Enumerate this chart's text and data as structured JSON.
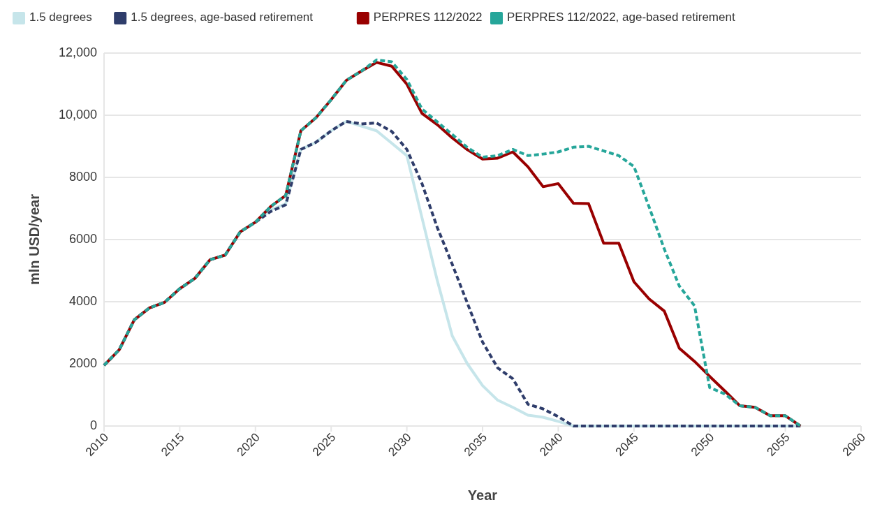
{
  "chart_data": {
    "type": "line",
    "xlabel": "Year",
    "ylabel": "mln USD/year",
    "x": [
      2010,
      2011,
      2012,
      2013,
      2014,
      2015,
      2016,
      2017,
      2018,
      2019,
      2020,
      2021,
      2022,
      2023,
      2024,
      2025,
      2026,
      2027,
      2028,
      2029,
      2030,
      2031,
      2032,
      2033,
      2034,
      2035,
      2036,
      2037,
      2038,
      2039,
      2040,
      2041,
      2042,
      2043,
      2044,
      2045,
      2046,
      2047,
      2048,
      2049,
      2050,
      2051,
      2052,
      2053,
      2054,
      2055,
      2056
    ],
    "series": [
      {
        "name": "1.5 degrees",
        "color": "#c6e5ea",
        "line_style": "solid",
        "values": [
          1950,
          2450,
          3420,
          3800,
          3980,
          4420,
          4750,
          5350,
          5500,
          6250,
          6560,
          6950,
          7150,
          8900,
          9130,
          9500,
          9800,
          9650,
          9500,
          9100,
          8700,
          6700,
          4700,
          2900,
          2000,
          1300,
          830,
          600,
          350,
          280,
          150,
          0,
          0,
          0,
          0,
          0,
          0,
          0,
          0,
          0,
          0,
          0,
          0,
          0,
          0,
          0,
          0
        ]
      },
      {
        "name": "1.5 degrees, age-based retirement",
        "color": "#2f3d6b",
        "line_style": "dashed",
        "values": [
          1950,
          2450,
          3420,
          3800,
          3980,
          4420,
          4750,
          5350,
          5500,
          6250,
          6560,
          6900,
          7120,
          8900,
          9130,
          9500,
          9800,
          9720,
          9750,
          9480,
          8900,
          7800,
          6400,
          5200,
          3950,
          2700,
          1870,
          1520,
          700,
          550,
          300,
          0,
          0,
          0,
          0,
          0,
          0,
          0,
          0,
          0,
          0,
          0,
          0,
          0,
          0,
          0,
          0
        ]
      },
      {
        "name": "PERPRES 112/2022",
        "color": "#990000",
        "line_style": "solid",
        "values": [
          1950,
          2450,
          3420,
          3800,
          3980,
          4420,
          4750,
          5350,
          5500,
          6250,
          6560,
          7060,
          7420,
          9500,
          9920,
          10500,
          11120,
          11420,
          11700,
          11580,
          11000,
          10060,
          9700,
          9270,
          8890,
          8590,
          8620,
          8820,
          8340,
          7700,
          7800,
          7170,
          7160,
          5880,
          5880,
          4640,
          4090,
          3700,
          2500,
          2080,
          1600,
          1130,
          650,
          600,
          330,
          330,
          0
        ]
      },
      {
        "name": "PERPRES 112/2022, age-based retirement",
        "color": "#26a69a",
        "line_style": "dashed",
        "values": [
          1950,
          2450,
          3420,
          3800,
          3980,
          4420,
          4750,
          5350,
          5500,
          6250,
          6560,
          7060,
          7420,
          9500,
          9920,
          10500,
          11120,
          11420,
          11780,
          11720,
          11150,
          10200,
          9790,
          9380,
          8960,
          8650,
          8700,
          8900,
          8700,
          8750,
          8820,
          8970,
          9000,
          8850,
          8700,
          8350,
          7050,
          5700,
          4500,
          3870,
          1240,
          1030,
          650,
          600,
          330,
          330,
          0
        ]
      }
    ],
    "xlim": [
      2010,
      2060
    ],
    "xticks": [
      2010,
      2015,
      2020,
      2025,
      2030,
      2035,
      2040,
      2045,
      2050,
      2055,
      2060
    ],
    "ylim": [
      0,
      12000
    ],
    "yticks": [
      0,
      2000,
      4000,
      6000,
      8000,
      {
        "value": 10000,
        "label": "10,000"
      },
      {
        "value": 12000,
        "label": "12,000"
      }
    ],
    "grid": "y",
    "legend": "top",
    "marker": "none"
  }
}
